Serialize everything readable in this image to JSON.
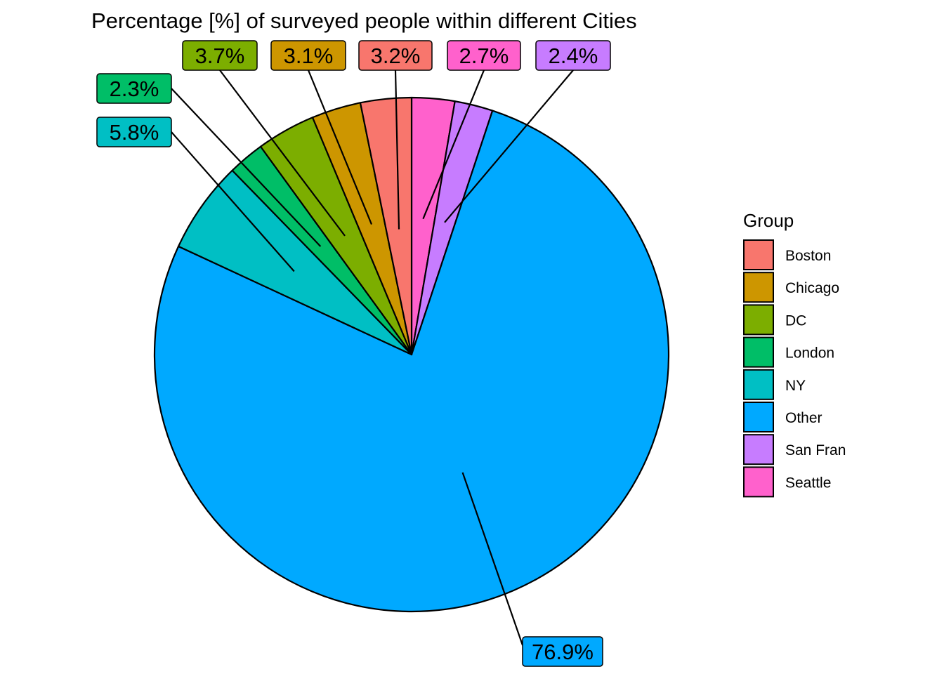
{
  "chart_data": {
    "type": "pie",
    "title": "Percentage [%] of surveyed people within different Cities",
    "legend_title": "Group",
    "legend_position": "right",
    "slice_order": [
      "Seattle",
      "San Fran",
      "Other",
      "NY",
      "London",
      "DC",
      "Chicago",
      "Boston"
    ],
    "slices": [
      {
        "name": "Boston",
        "value": 3.2,
        "label": "3.2%",
        "color": "#F8766D"
      },
      {
        "name": "Chicago",
        "value": 3.1,
        "label": "3.1%",
        "color": "#CD9600"
      },
      {
        "name": "DC",
        "value": 3.7,
        "label": "3.7%",
        "color": "#7CAE00"
      },
      {
        "name": "London",
        "value": 2.3,
        "label": "2.3%",
        "color": "#00BE67"
      },
      {
        "name": "NY",
        "value": 5.8,
        "label": "5.8%",
        "color": "#00BFC4"
      },
      {
        "name": "Other",
        "value": 76.9,
        "label": "76.9%",
        "color": "#00A9FF"
      },
      {
        "name": "San Fran",
        "value": 2.4,
        "label": "2.4%",
        "color": "#C77CFF"
      },
      {
        "name": "Seattle",
        "value": 2.7,
        "label": "2.7%",
        "color": "#FF61CC"
      }
    ]
  }
}
